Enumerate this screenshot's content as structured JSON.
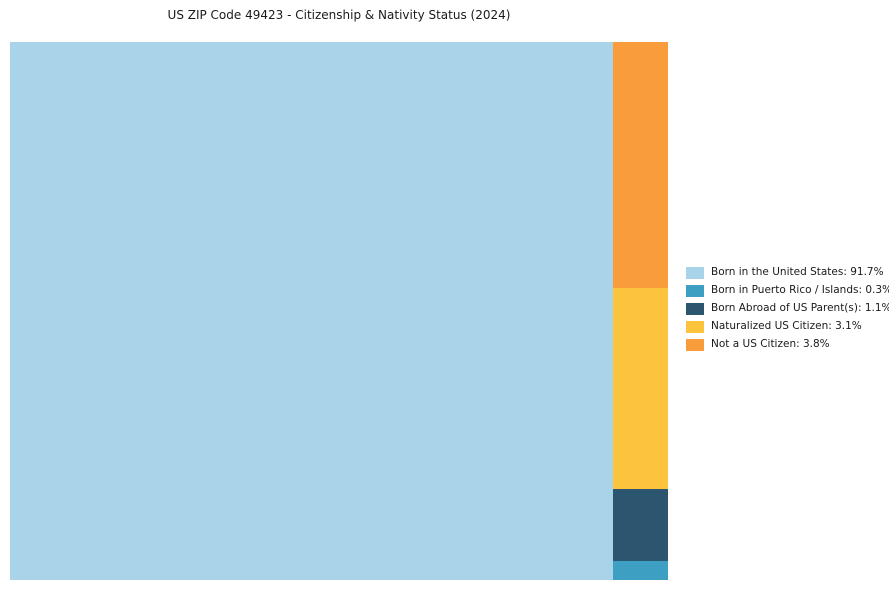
{
  "title": "US ZIP Code 49423 - Citizenship & Nativity Status (2024)",
  "chart_data": {
    "type": "pie",
    "variant": "treemap",
    "title": "US ZIP Code 49423 - Citizenship & Nativity Status (2024)",
    "categories": [
      "Born in the United States",
      "Born in Puerto Rico / Islands",
      "Born Abroad of US Parent(s)",
      "Naturalized US Citizen",
      "Not a US Citizen"
    ],
    "values": [
      91.7,
      0.3,
      1.1,
      3.1,
      3.8
    ],
    "unit": "%",
    "colors": [
      "#A8D3E8",
      "#3D9FC2",
      "#2C5670",
      "#FCC43D",
      "#F99C3C"
    ],
    "legend_position": "right",
    "grid": false,
    "treemap_layout": {
      "main_index": 0,
      "column_indices_top_to_bottom": [
        4,
        3,
        2,
        1
      ]
    }
  },
  "legend": {
    "items": [
      {
        "label": "Born in the United States: 91.7%",
        "color": "#A8D3E8"
      },
      {
        "label": "Born in Puerto Rico / Islands: 0.3%",
        "color": "#3D9FC2"
      },
      {
        "label": "Born Abroad of US Parent(s): 1.1%",
        "color": "#2C5670"
      },
      {
        "label": "Naturalized US Citizen: 3.1%",
        "color": "#FCC43D"
      },
      {
        "label": "Not a US Citizen: 3.8%",
        "color": "#F99C3C"
      }
    ]
  }
}
